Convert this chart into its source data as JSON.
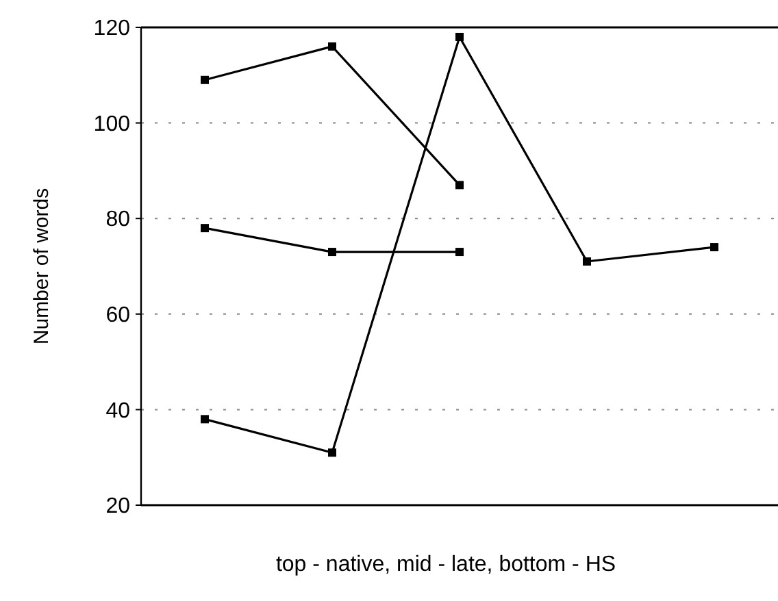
{
  "chart_data": {
    "type": "line",
    "xlabel": "top - native, mid - late, bottom - HS",
    "ylabel": "Number of words",
    "categories": [
      null,
      null,
      null,
      null,
      null
    ],
    "series": [
      {
        "color": "#000000",
        "values": [
          109,
          116,
          87,
          null,
          null
        ]
      },
      {
        "color": "#000000",
        "values": [
          78,
          73,
          73,
          null,
          null
        ]
      },
      {
        "color": "#000000",
        "values": [
          38,
          31,
          118,
          71,
          74
        ]
      }
    ],
    "ylim": [
      20,
      120
    ],
    "yticks": [
      20,
      40,
      60,
      80,
      100,
      120
    ],
    "grid": "y",
    "marker": "square",
    "line_style": "solid"
  }
}
